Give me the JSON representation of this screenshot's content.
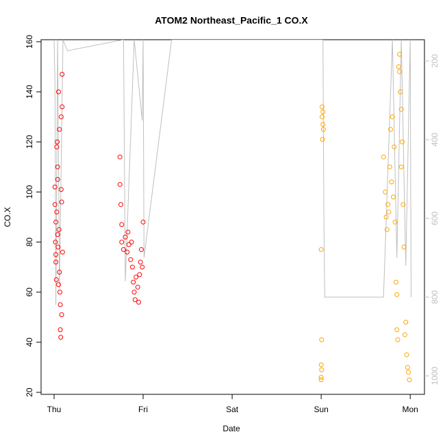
{
  "chart_data": {
    "type": "scatter",
    "title": "ATOM2 Northeast_Pacific_1 CO.X",
    "x_label": "Date",
    "y_label": "CO.X",
    "xlim": [
      -0.146,
      4.16
    ],
    "xticks": [
      {
        "value": 0,
        "label": "Thu"
      },
      {
        "value": 1,
        "label": "Fri"
      },
      {
        "value": 2,
        "label": "Sat"
      },
      {
        "value": 3,
        "label": "Sun"
      },
      {
        "value": 4,
        "label": "Mon"
      }
    ],
    "ylim": [
      19.2,
      160.8
    ],
    "yticks": [
      20,
      40,
      60,
      80,
      100,
      120,
      140,
      160
    ],
    "y2lim": [
      1047,
      146
    ],
    "y2ticks": [
      200,
      400,
      600,
      800,
      1000
    ],
    "series": [
      {
        "color": "#ff0000",
        "x": [
          0.01,
          0.01,
          0.015,
          0.02,
          0.02,
          0.025,
          0.03,
          0.035,
          0.04,
          0.04,
          0.045,
          0.05,
          0.05,
          0.055,
          0.06,
          0.06,
          0.065,
          0.07,
          0.07,
          0.075,
          0.08,
          0.08,
          0.085,
          0.09,
          0.09,
          0.095,
          0.085,
          0.03,
          0.02,
          0.04,
          0.74,
          0.74,
          0.75,
          0.76,
          0.76,
          0.78,
          0.8,
          0.82,
          0.84,
          0.86,
          0.88,
          0.89,
          0.9,
          0.91,
          0.92,
          0.94,
          0.95,
          0.96,
          0.97,
          0.98,
          0.99,
          1.0,
          0.87,
          0.83
        ],
        "values": [
          95,
          102,
          80,
          75,
          88,
          65,
          118,
          120,
          110,
          105,
          78,
          140,
          63,
          85,
          125,
          68,
          60,
          55,
          45,
          42,
          130,
          101,
          96,
          147,
          134,
          76,
          51,
          92,
          72,
          83,
          114,
          103,
          95,
          87,
          80,
          77,
          82,
          76,
          79,
          73,
          70,
          64,
          60,
          57,
          66,
          62,
          56,
          67,
          72,
          77,
          70,
          88,
          80,
          84
        ]
      },
      {
        "color": "#ffa500",
        "x": [
          3.01,
          3.01,
          3.015,
          3.02,
          3.02,
          3.025,
          3.0,
          3.005,
          3.0,
          3.005,
          3.0,
          3.0,
          3.7,
          3.72,
          3.73,
          3.74,
          3.75,
          3.77,
          3.78,
          3.79,
          3.8,
          3.81,
          3.82,
          3.83,
          3.84,
          3.85,
          3.85,
          3.86,
          3.87,
          3.88,
          3.89,
          3.9,
          3.9,
          3.92,
          3.93,
          3.94,
          3.95,
          3.96,
          3.97,
          3.98,
          3.99,
          3.76,
          3.88,
          3.91
        ],
        "values": [
          134,
          130,
          121,
          127,
          132,
          125,
          77,
          41,
          31,
          29,
          25,
          26,
          114,
          100,
          90,
          85,
          95,
          110,
          125,
          104,
          130,
          98,
          118,
          88,
          64,
          59,
          45,
          41,
          150,
          148,
          140,
          133,
          110,
          95,
          78,
          43,
          48,
          35,
          30,
          28,
          25,
          92,
          155,
          120
        ]
      },
      {
        "type": "line",
        "axis": "y2",
        "color": "#bebebe",
        "x": [
          0.0,
          0.01,
          0.02,
          0.04,
          0.06,
          0.1,
          0.15,
          0.78,
          0.8,
          0.9,
          0.99,
          1.0,
          1.01,
          1.32,
          2.9,
          3.02,
          3.03,
          3.04,
          3.7,
          3.8,
          3.85,
          3.9,
          3.95,
          4.0,
          4.01
        ],
        "values": [
          146,
          250,
          820,
          146,
          780,
          146,
          174,
          146,
          760,
          146,
          351,
          146,
          700,
          146,
          146,
          146,
          590,
          800,
          800,
          146,
          700,
          146,
          720,
          146,
          800
        ]
      }
    ]
  }
}
